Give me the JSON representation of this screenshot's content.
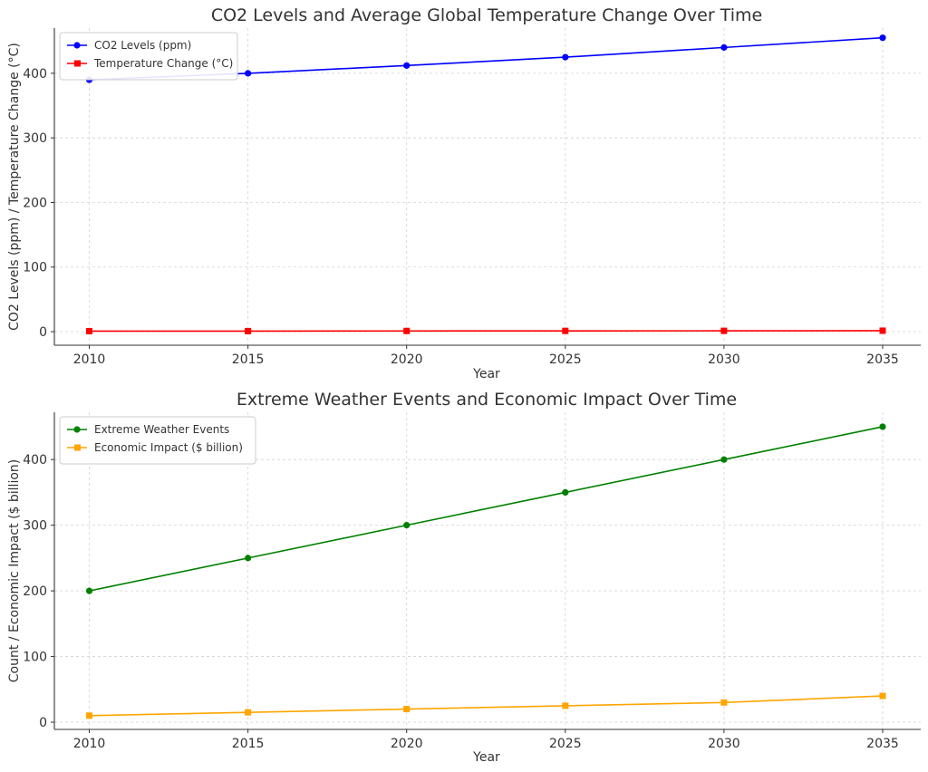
{
  "chart_data": [
    {
      "type": "line",
      "title": "CO2 Levels and Average Global Temperature Change Over Time",
      "xlabel": "Year",
      "ylabel": "CO2 Levels (ppm) / Temperature Change (°C)",
      "x": [
        2010,
        2015,
        2020,
        2025,
        2030,
        2035
      ],
      "xticks": [
        2010,
        2015,
        2020,
        2025,
        2030,
        2035
      ],
      "yticks": [
        0,
        100,
        200,
        300,
        400
      ],
      "xlim": [
        2008.9,
        2036.2
      ],
      "ylim": [
        -21,
        470
      ],
      "grid": true,
      "legend_position": "top-left",
      "series": [
        {
          "name": "CO2 Levels (ppm)",
          "color": "#0000ff",
          "marker": "circle",
          "values": [
            390,
            400,
            412,
            425,
            440,
            455
          ]
        },
        {
          "name": "Temperature Change (°C)",
          "color": "#ff0000",
          "marker": "square",
          "values": [
            0.8,
            0.9,
            1.1,
            1.2,
            1.3,
            1.5
          ]
        }
      ]
    },
    {
      "type": "line",
      "title": "Extreme Weather Events and Economic Impact Over Time",
      "xlabel": "Year",
      "ylabel": "Count / Economic Impact ($ billion)",
      "x": [
        2010,
        2015,
        2020,
        2025,
        2030,
        2035
      ],
      "xticks": [
        2010,
        2015,
        2020,
        2025,
        2030,
        2035
      ],
      "yticks": [
        0,
        100,
        200,
        300,
        400
      ],
      "xlim": [
        2008.9,
        2036.2
      ],
      "ylim": [
        -11,
        472
      ],
      "grid": true,
      "legend_position": "top-left",
      "series": [
        {
          "name": "Extreme Weather Events",
          "color": "#008000",
          "marker": "circle",
          "values": [
            200,
            250,
            300,
            350,
            400,
            450
          ]
        },
        {
          "name": "Economic Impact ($ billion)",
          "color": "#ffa500",
          "marker": "square",
          "values": [
            10,
            15,
            20,
            25,
            30,
            40
          ]
        }
      ]
    }
  ]
}
